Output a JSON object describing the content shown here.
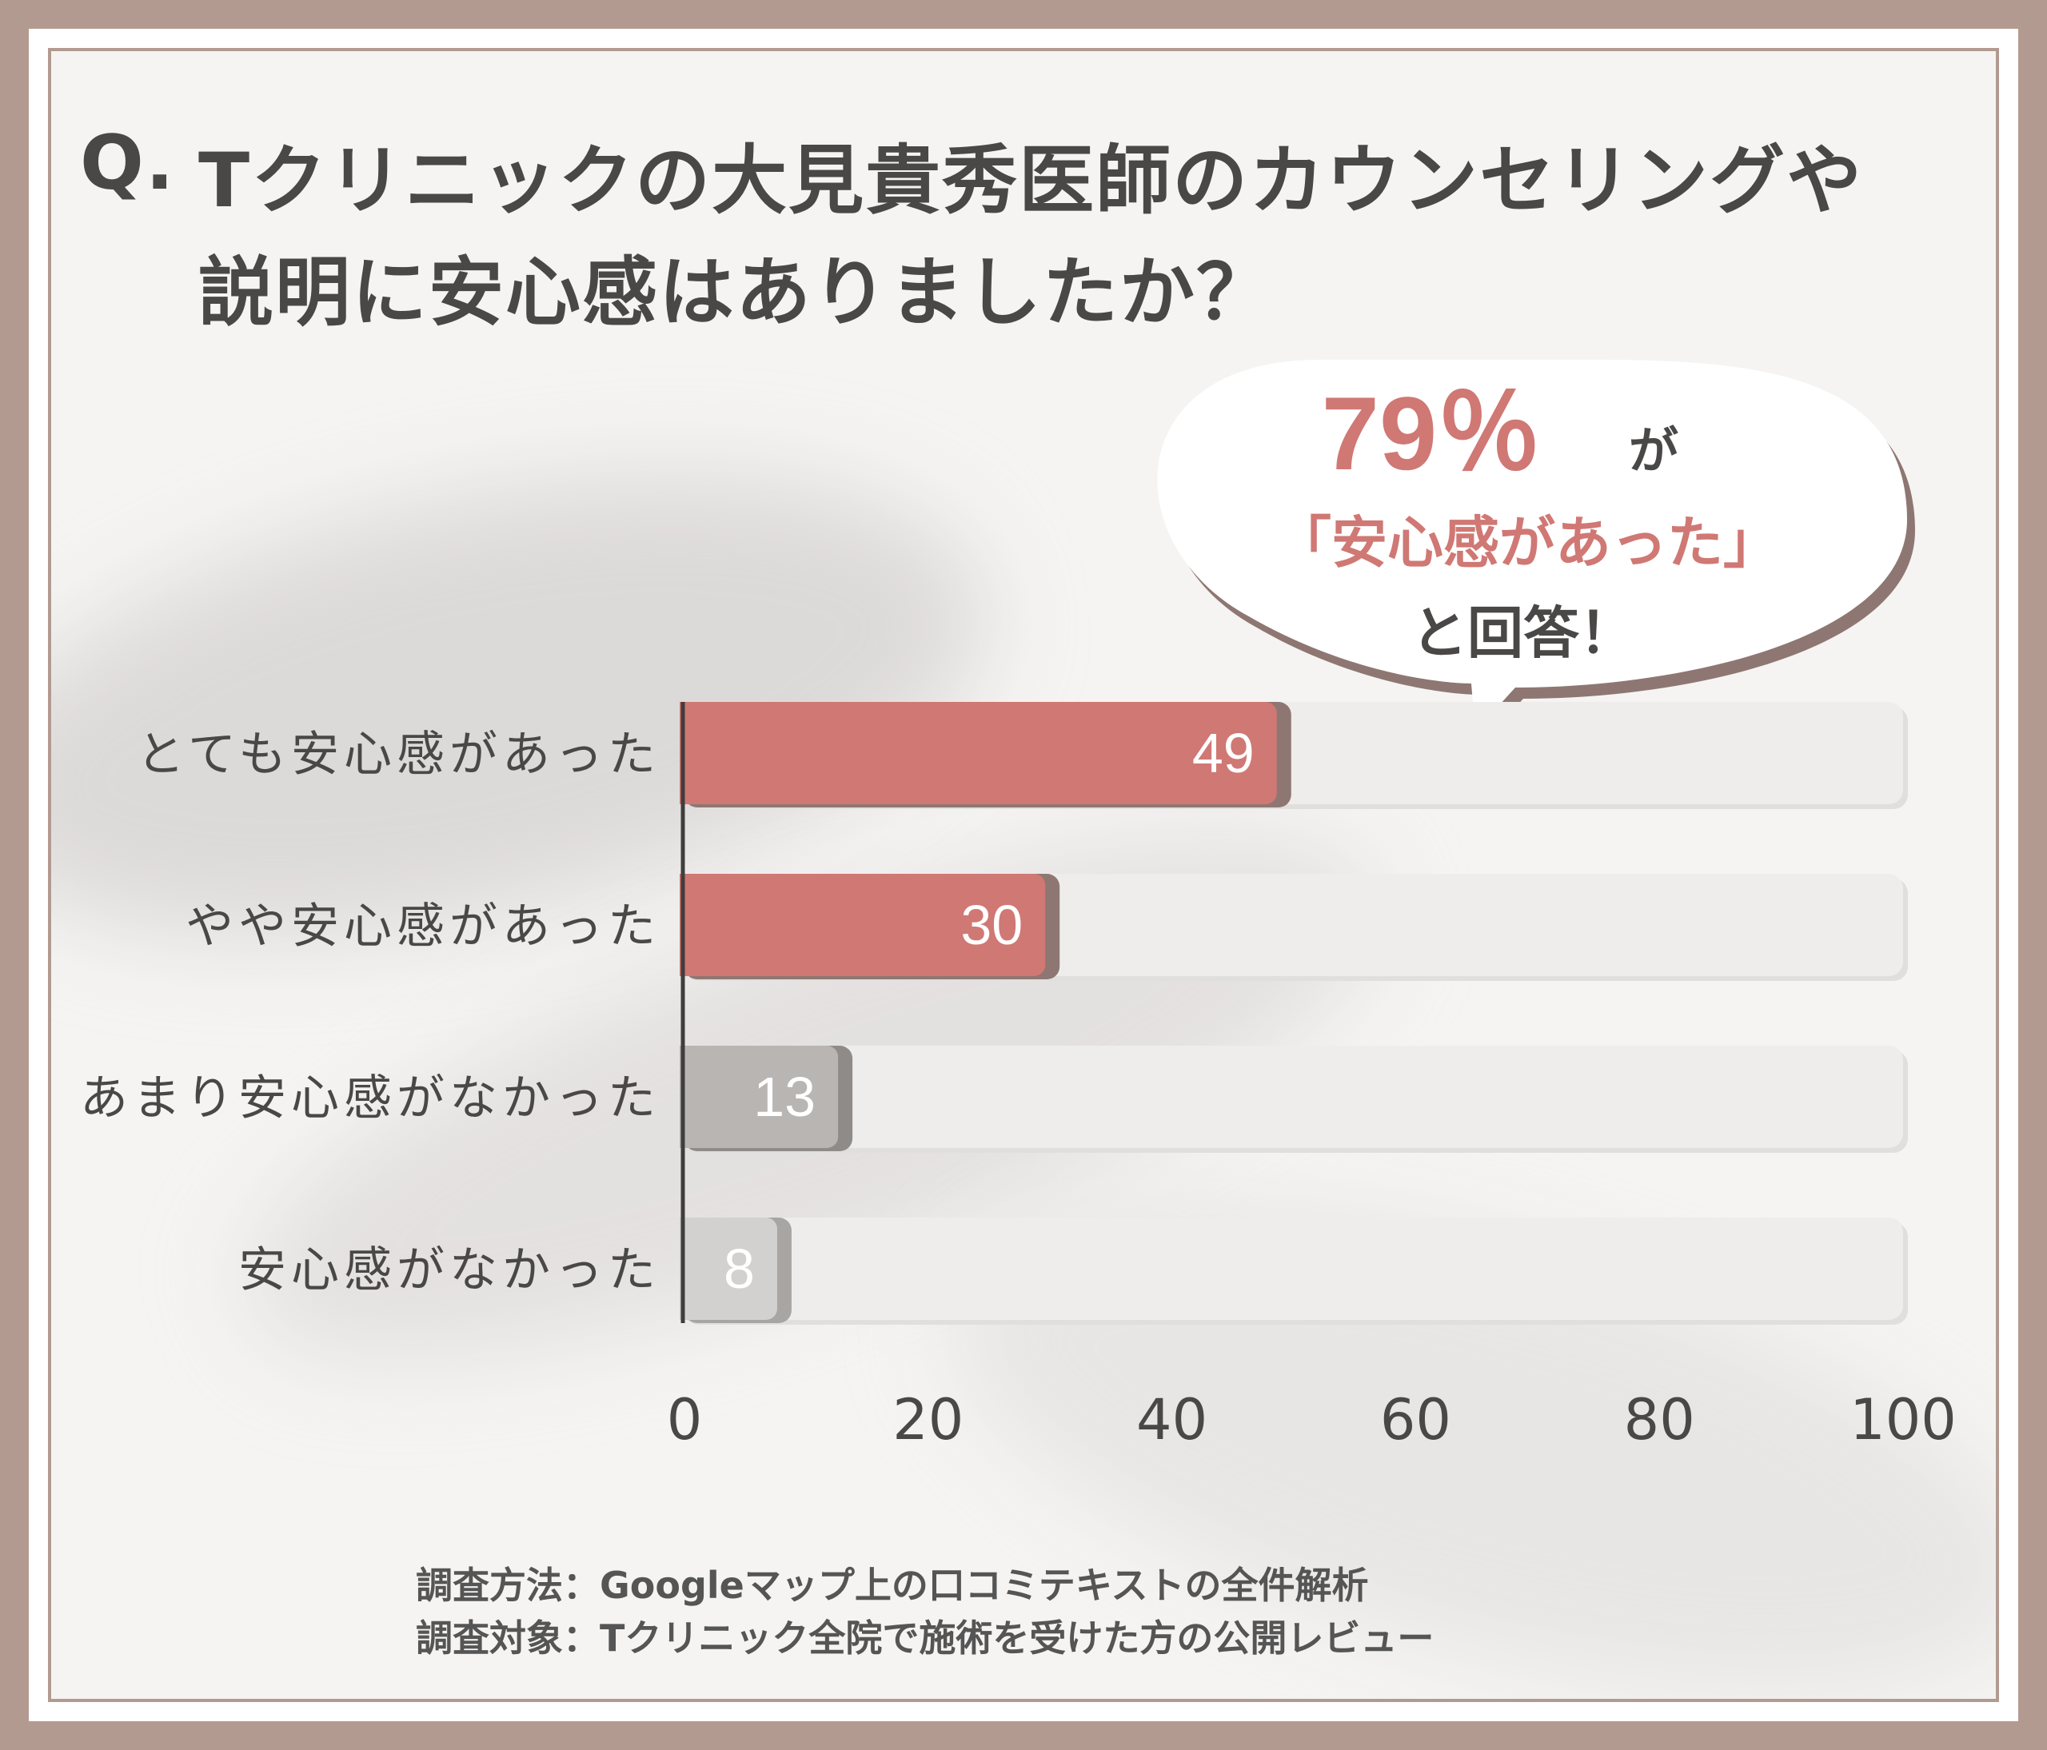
{
  "title": {
    "prefix": "Q.",
    "line1": "Tクリニックの大見貴秀医師のカウンセリングや",
    "line2": "説明に安心感はありましたか？"
  },
  "callout": {
    "percent": "79％",
    "suffix": "が",
    "quote": "「安心感があった」",
    "ending": "と回答！"
  },
  "chart_data": {
    "type": "bar",
    "orientation": "horizontal",
    "categories": [
      "とても安心感があった",
      "やや安心感があった",
      "あまり安心感がなかった",
      "安心感がなかった"
    ],
    "values": [
      49,
      30,
      13,
      8
    ],
    "xlim": [
      0,
      100
    ],
    "xticks": [
      "0",
      "20",
      "40",
      "60",
      "80",
      "100"
    ],
    "colors": [
      "#d07874",
      "#d07874",
      "#b8b5b3",
      "#d3d1cf"
    ],
    "shadow_colors": [
      "#8e7772",
      "#8e7772",
      "#8e8b89",
      "#a8a5a3"
    ],
    "track_color": "#efedec"
  },
  "footnote": {
    "method": "調査方法：Googleマップ上の口コミテキストの全件解析",
    "target": "調査対象：Tクリニック全院で施術を受けた方の公開レビュー"
  }
}
